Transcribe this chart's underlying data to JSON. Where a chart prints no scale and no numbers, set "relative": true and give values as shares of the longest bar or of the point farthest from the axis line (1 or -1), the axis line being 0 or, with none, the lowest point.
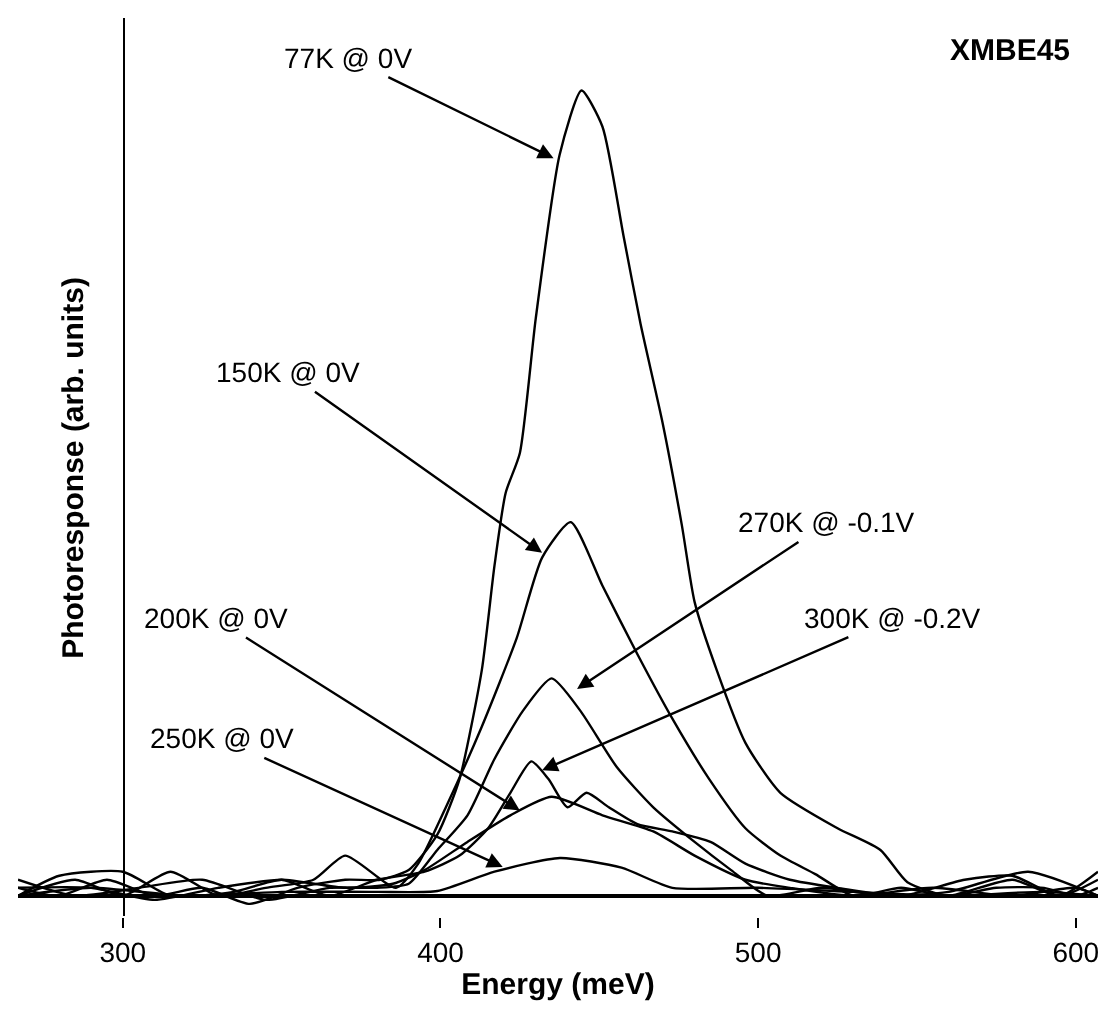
{
  "chart_data": {
    "type": "line",
    "xlabel": "Energy (meV)",
    "ylabel": "Photoresponse (arb. units)",
    "relative": true,
    "xlim": [
      267,
      607
    ],
    "xticks": [
      300,
      400,
      500,
      600
    ],
    "marker": "none",
    "line_style": "solid",
    "series": [
      {
        "color": "#000000",
        "x": [
          267,
          280,
          295,
          310,
          325,
          340,
          355,
          370,
          381,
          390,
          399,
          406,
          413,
          417,
          420.5,
          425,
          430,
          437.5,
          444.4,
          451,
          457.6,
          463,
          470,
          476,
          480,
          487,
          496,
          507,
          525,
          538.5,
          547,
          560,
          575,
          590,
          600,
          607
        ],
        "values": [
          0.01,
          0.0,
          0.02,
          0.0,
          0.01,
          -0.01,
          0.01,
          0.02,
          0.02,
          0.032,
          0.076,
          0.145,
          0.28,
          0.41,
          0.5,
          0.55,
          0.717,
          0.92,
          1.0,
          0.955,
          0.82,
          0.71,
          0.586,
          0.46,
          0.365,
          0.28,
          0.19,
          0.128,
          0.084,
          0.057,
          0.017,
          0.0,
          0.01,
          0.01,
          0.0,
          0.01
        ]
      },
      {
        "color": "#000000",
        "x": [
          267,
          285,
          300,
          315,
          330,
          345,
          360,
          370,
          386,
          393,
          401.7,
          413,
          424,
          432,
          441,
          451,
          462,
          473,
          484.6,
          496,
          507,
          518,
          530,
          545,
          560,
          580,
          595,
          607
        ],
        "values": [
          0.0,
          0.02,
          0.0,
          0.03,
          0.0,
          0.01,
          0.02,
          0.05,
          0.01,
          0.04,
          0.11,
          0.21,
          0.32,
          0.42,
          0.464,
          0.385,
          0.3,
          0.22,
          0.145,
          0.084,
          0.05,
          0.027,
          0.0,
          0.01,
          0.0,
          0.02,
          0.0,
          0.03
        ]
      },
      {
        "color": "#000000",
        "x": [
          267,
          285,
          305,
          325,
          345,
          365,
          380,
          390,
          399,
          408.5,
          417,
          426,
          435,
          444,
          455.5,
          467,
          480,
          491.5,
          503,
          520,
          540,
          560,
          585,
          607
        ],
        "values": [
          0.02,
          0.0,
          0.01,
          0.02,
          -0.005,
          0.01,
          0.01,
          0.015,
          0.057,
          0.1,
          0.17,
          0.23,
          0.27,
          0.23,
          0.16,
          0.11,
          0.067,
          0.032,
          0.0,
          0.01,
          0.0,
          0.005,
          0.03,
          0.0
        ]
      },
      {
        "color": "#000000",
        "x": [
          267,
          280,
          300,
          315,
          335,
          350,
          365,
          380,
          395,
          406,
          415,
          422,
          428.6,
          434,
          440,
          446,
          453,
          462,
          473,
          485,
          496,
          510,
          525,
          545,
          565,
          580,
          595,
          607
        ],
        "values": [
          0.0,
          0.025,
          0.03,
          0.0,
          0.005,
          0.02,
          0.0,
          0.02,
          0.03,
          0.05,
          0.084,
          0.128,
          0.167,
          0.145,
          0.11,
          0.128,
          0.11,
          0.089,
          0.08,
          0.067,
          0.04,
          0.02,
          0.01,
          0.0,
          0.02,
          0.025,
          0.0,
          0.02
        ]
      },
      {
        "color": "#000000",
        "x": [
          267,
          290,
          310,
          330,
          350,
          370,
          385,
          395,
          408.5,
          422,
          435,
          451,
          467,
          480,
          496,
          510,
          530,
          555,
          580,
          600,
          607
        ],
        "values": [
          0.01,
          0.01,
          -0.005,
          0.01,
          0.02,
          0.01,
          0.015,
          0.032,
          0.067,
          0.1,
          0.123,
          0.1,
          0.08,
          0.05,
          0.02,
          0.01,
          0.0,
          0.01,
          0.0,
          0.01,
          0.0
        ]
      },
      {
        "color": "#000000",
        "x": [
          267,
          290,
          320,
          350,
          380,
          399,
          417,
          437.6,
          457,
          473,
          500,
          530,
          560,
          590,
          607
        ],
        "values": [
          0.0,
          0.01,
          0.0,
          0.005,
          0.005,
          0.006,
          0.03,
          0.047,
          0.035,
          0.01,
          0.01,
          0.005,
          0.0,
          0.005,
          0.0
        ]
      }
    ],
    "annotations": [
      {
        "text": "77K @ 0V",
        "x": 435.6,
        "y": 0.916
      },
      {
        "text": "150K @ 0V",
        "x": 432,
        "y": 0.426
      },
      {
        "text": "270K @ -0.1V",
        "x": 443,
        "y": 0.257
      },
      {
        "text": "300K @ -0.2V",
        "x": 432,
        "y": 0.156
      },
      {
        "text": "200K @ 0V",
        "x": 425,
        "y": 0.106
      },
      {
        "text": "250K @ 0V",
        "x": 419.6,
        "y": 0.036
      },
      "XMBE45"
    ]
  }
}
